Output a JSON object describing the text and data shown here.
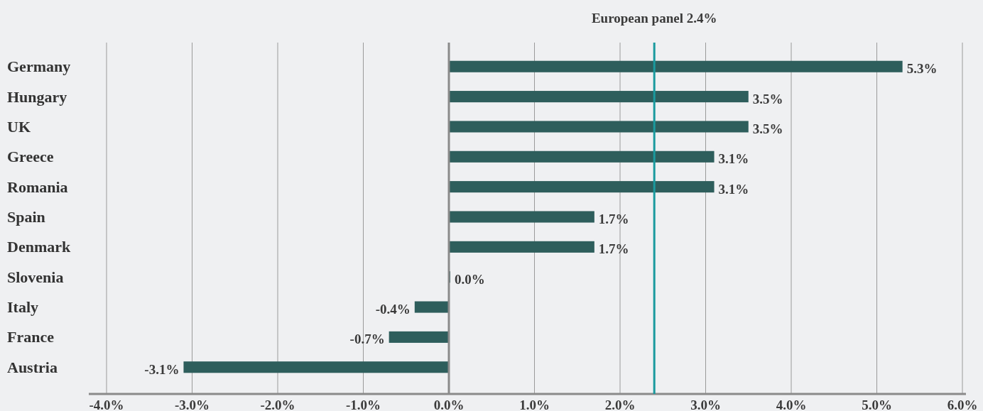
{
  "chart_data": {
    "type": "bar",
    "orientation": "horizontal",
    "categories": [
      "Germany",
      "Hungary",
      "UK",
      "Greece",
      "Romania",
      "Spain",
      "Denmark",
      "Slovenia",
      "Italy",
      "France",
      "Austria"
    ],
    "values": [
      5.3,
      3.5,
      3.5,
      3.1,
      3.1,
      1.7,
      1.7,
      0.0,
      -0.4,
      -0.7,
      -3.1
    ],
    "color": "#2e5e5c",
    "data_labels": true,
    "value_labels": [
      "5.3%",
      "3.5%",
      "3.5%",
      "3.1%",
      "3.1%",
      "1.7%",
      "1.7%",
      "0.0%",
      "-0.4%",
      "-0.7%",
      "-3.1%"
    ],
    "xlim": [
      -4,
      6
    ],
    "xticks": [
      {
        "value": -4,
        "label": "-4.0%"
      },
      {
        "value": -3,
        "label": "-3.0%"
      },
      {
        "value": -2,
        "label": "-2.0%"
      },
      {
        "value": -1,
        "label": "-1.0%"
      },
      {
        "value": 0,
        "label": "0.0%"
      },
      {
        "value": 1,
        "label": "1.0%"
      },
      {
        "value": 2,
        "label": "2.0%"
      },
      {
        "value": 3,
        "label": "3.0%"
      },
      {
        "value": 4,
        "label": "4.0%"
      },
      {
        "value": 5,
        "label": "5.0%"
      },
      {
        "value": 6,
        "label": "6.0%"
      }
    ],
    "grid": "x",
    "ref_lines": [
      {
        "axis": "x",
        "value": 2.4,
        "label": "European panel 2.4%",
        "color": "#1a9a9e"
      }
    ]
  }
}
